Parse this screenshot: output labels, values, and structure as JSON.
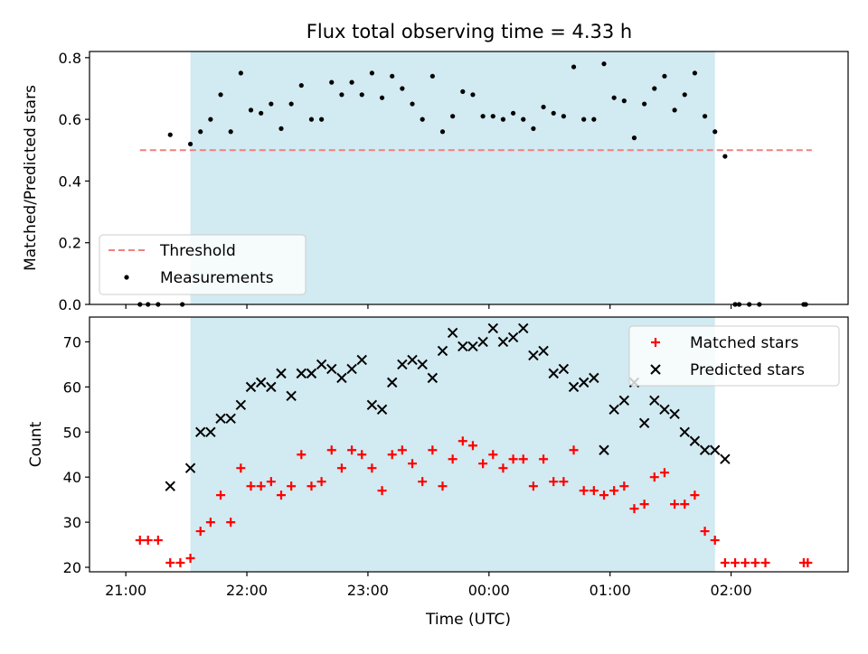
{
  "chart_data": {
    "title": "Flux total observing time = 4.33 h",
    "x_tick_labels": [
      "21:00",
      "22:00",
      "23:00",
      "00:00",
      "01:00",
      "02:00"
    ],
    "x_tick_minutes": [
      0,
      60,
      120,
      180,
      240,
      300
    ],
    "xlabel": "Time (UTC)",
    "x_range_minutes": [
      -18,
      358
    ],
    "shaded_window_minutes": [
      32,
      292
    ],
    "shade_color": "#add8e6",
    "panels": [
      {
        "type": "scatter",
        "ylabel": "Matched/Predicted stars",
        "ylim": [
          0,
          0.82
        ],
        "y_ticks": [
          0.0,
          0.2,
          0.4,
          0.6,
          0.8
        ],
        "y_tick_labels": [
          "0.0",
          "0.2",
          "0.4",
          "0.6",
          "0.8"
        ],
        "legend_position": "lower-left",
        "threshold": {
          "name": "Threshold",
          "value": 0.5,
          "x_range": [
            7,
            340
          ],
          "color": "#f08080"
        },
        "series": [
          {
            "name": "Measurements",
            "color": "#000000",
            "marker": "dot",
            "x": [
              7,
              11,
              16,
              22,
              28,
              32,
              37,
              42,
              47,
              52,
              57,
              62,
              67,
              72,
              77,
              82,
              87,
              92,
              97,
              102,
              107,
              112,
              117,
              122,
              127,
              132,
              137,
              142,
              147,
              152,
              157,
              162,
              167,
              172,
              177,
              182,
              187,
              192,
              197,
              202,
              207,
              212,
              217,
              222,
              227,
              232,
              237,
              242,
              247,
              252,
              257,
              262,
              267,
              272,
              277,
              282,
              287,
              292,
              297,
              302,
              304,
              309,
              314,
              336,
              337
            ],
            "y": [
              0.0,
              0.0,
              0.0,
              0.55,
              0.0,
              0.52,
              0.56,
              0.6,
              0.68,
              0.56,
              0.75,
              0.63,
              0.62,
              0.65,
              0.57,
              0.65,
              0.71,
              0.6,
              0.6,
              0.72,
              0.68,
              0.72,
              0.68,
              0.75,
              0.67,
              0.74,
              0.7,
              0.65,
              0.6,
              0.74,
              0.56,
              0.61,
              0.69,
              0.68,
              0.61,
              0.61,
              0.6,
              0.62,
              0.6,
              0.57,
              0.64,
              0.62,
              0.61,
              0.77,
              0.6,
              0.6,
              0.78,
              0.67,
              0.66,
              0.54,
              0.65,
              0.7,
              0.74,
              0.63,
              0.68,
              0.75,
              0.61,
              0.56,
              0.48,
              0.0,
              0.0,
              0.0,
              0.0,
              0.0,
              0.0
            ]
          }
        ]
      },
      {
        "type": "scatter",
        "ylabel": "Count",
        "ylim": [
          19,
          75.5
        ],
        "y_ticks": [
          20,
          30,
          40,
          50,
          60,
          70
        ],
        "y_tick_labels": [
          "20",
          "30",
          "40",
          "50",
          "60",
          "70"
        ],
        "legend_position": "upper-right",
        "series": [
          {
            "name": "Matched stars",
            "color": "#ff0000",
            "marker": "plus",
            "x": [
              7,
              11,
              16,
              22,
              27,
              32,
              37,
              42,
              47,
              52,
              57,
              62,
              67,
              72,
              77,
              82,
              87,
              92,
              97,
              102,
              107,
              112,
              117,
              122,
              127,
              132,
              137,
              142,
              147,
              152,
              157,
              162,
              167,
              172,
              177,
              182,
              187,
              192,
              197,
              202,
              207,
              212,
              217,
              222,
              227,
              232,
              237,
              242,
              247,
              252,
              257,
              262,
              267,
              272,
              277,
              282,
              287,
              292,
              297,
              302,
              307,
              312,
              317,
              336,
              338
            ],
            "y": [
              26,
              26,
              26,
              21,
              21,
              22,
              28,
              30,
              36,
              30,
              42,
              38,
              38,
              39,
              36,
              38,
              45,
              38,
              39,
              46,
              42,
              46,
              45,
              42,
              37,
              45,
              46,
              43,
              39,
              46,
              38,
              44,
              48,
              47,
              43,
              45,
              42,
              44,
              44,
              38,
              44,
              39,
              39,
              46,
              37,
              37,
              36,
              37,
              38,
              33,
              34,
              40,
              41,
              34,
              34,
              36,
              28,
              26,
              21,
              21,
              21,
              21,
              21,
              21,
              21
            ]
          },
          {
            "name": "Predicted stars",
            "color": "#000000",
            "marker": "x",
            "x": [
              22,
              32,
              37,
              42,
              47,
              52,
              57,
              62,
              67,
              72,
              77,
              82,
              87,
              92,
              97,
              102,
              107,
              112,
              117,
              122,
              127,
              132,
              137,
              142,
              147,
              152,
              157,
              162,
              167,
              172,
              177,
              182,
              187,
              192,
              197,
              202,
              207,
              212,
              217,
              222,
              227,
              232,
              237,
              242,
              247,
              252,
              257,
              262,
              267,
              272,
              277,
              282,
              287,
              292,
              297
            ],
            "y": [
              38,
              42,
              50,
              50,
              53,
              53,
              56,
              60,
              61,
              60,
              63,
              58,
              63,
              63,
              65,
              64,
              62,
              64,
              66,
              56,
              55,
              61,
              65,
              66,
              65,
              62,
              68,
              72,
              69,
              69,
              70,
              73,
              70,
              71,
              73,
              67,
              68,
              63,
              64,
              60,
              61,
              62,
              46,
              55,
              57,
              61,
              52,
              57,
              55,
              54,
              50,
              48,
              46,
              46,
              44
            ]
          }
        ]
      }
    ]
  }
}
